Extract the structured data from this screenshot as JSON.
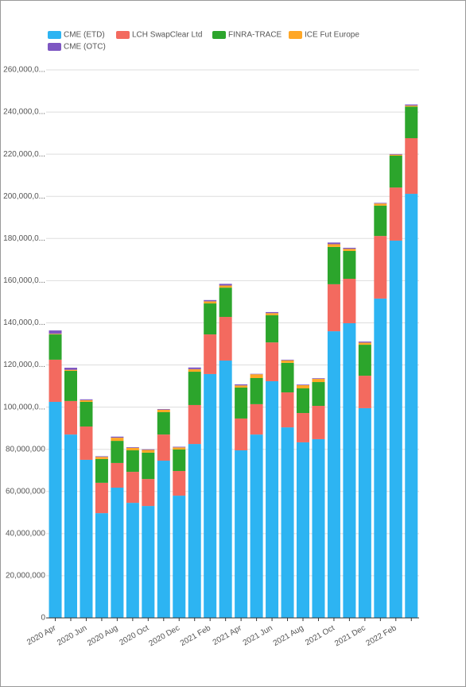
{
  "chart_data": {
    "type": "stacked-bar",
    "categories": [
      "2020 Apr",
      null,
      "2020 Jun",
      null,
      "2020 Aug",
      null,
      "2020 Oct",
      null,
      "2020 Dec",
      null,
      "2021 Feb",
      null,
      "2021 Apr",
      null,
      "2021 Jun",
      null,
      "2021 Aug",
      null,
      "2021 Oct",
      null,
      "2021 Dec",
      null,
      "2022 Feb",
      null
    ],
    "series": [
      {
        "name": "CME (ETD)",
        "color": "#2db4f2",
        "values": [
          102500000,
          87000000,
          75000000,
          49700000,
          61800000,
          54600000,
          53100000,
          74600000,
          58000000,
          82500000,
          115700000,
          122100000,
          79500000,
          87000000,
          112300000,
          90400000,
          83300000,
          84800000,
          136000000,
          139800000,
          99500000,
          151500000,
          179000000,
          201200000
        ]
      },
      {
        "name": "LCH SwapClear Ltd",
        "color": "#f36a5f",
        "values": [
          20000000,
          15900000,
          15800000,
          14400000,
          11700000,
          14700000,
          12800000,
          12400000,
          11700000,
          18500000,
          18800000,
          20700000,
          15100000,
          14400000,
          18400000,
          16600000,
          13900000,
          15800000,
          22300000,
          21100000,
          15400000,
          29700000,
          25200000,
          26400000
        ]
      },
      {
        "name": "FINRA-TRACE",
        "color": "#2ca52c",
        "values": [
          12000000,
          14300000,
          11700000,
          11300000,
          10500000,
          10200000,
          12500000,
          10600000,
          10200000,
          15800000,
          14700000,
          13900000,
          14700000,
          12400000,
          12900000,
          14000000,
          11700000,
          11300000,
          17700000,
          13200000,
          14700000,
          14400000,
          15100000,
          15000000
        ]
      },
      {
        "name": "ICE Fut Europe",
        "color": "#ffa726",
        "values": [
          300000,
          500000,
          800000,
          1000000,
          1500000,
          1200000,
          1300000,
          1200000,
          1000000,
          1200000,
          1000000,
          1000000,
          1000000,
          1800000,
          1000000,
          1200000,
          1500000,
          1500000,
          1300000,
          1000000,
          1000000,
          1000000,
          500000,
          500000
        ]
      },
      {
        "name": "CME (OTC)",
        "color": "#7e57c2",
        "values": [
          1600000,
          1000000,
          400000,
          300000,
          500000,
          300000,
          300000,
          300000,
          300000,
          800000,
          600000,
          800000,
          500000,
          200000,
          500000,
          300000,
          300000,
          300000,
          800000,
          500000,
          500000,
          300000,
          300000,
          500000
        ]
      }
    ],
    "ylim": [
      0,
      260000000
    ],
    "yticks": [
      0,
      {
        "value": 20000000,
        "label": "20,000,000"
      },
      {
        "value": 40000000,
        "label": "40,000,000"
      },
      {
        "value": 60000000,
        "label": "60,000,000"
      },
      {
        "value": 80000000,
        "label": "80,000,000"
      },
      {
        "value": 100000000,
        "label": "100,000,0..."
      },
      {
        "value": 120000000,
        "label": "120,000,0..."
      },
      {
        "value": 140000000,
        "label": "140,000,0..."
      },
      {
        "value": 160000000,
        "label": "160,000,0..."
      },
      {
        "value": 180000000,
        "label": "180,000,0..."
      },
      {
        "value": 200000000,
        "label": "200,000,0..."
      },
      {
        "value": 220000000,
        "label": "220,000,0..."
      },
      {
        "value": 240000000,
        "label": "240,000,0..."
      },
      {
        "value": 260000000,
        "label": "260,000,0..."
      }
    ],
    "grid": true
  }
}
